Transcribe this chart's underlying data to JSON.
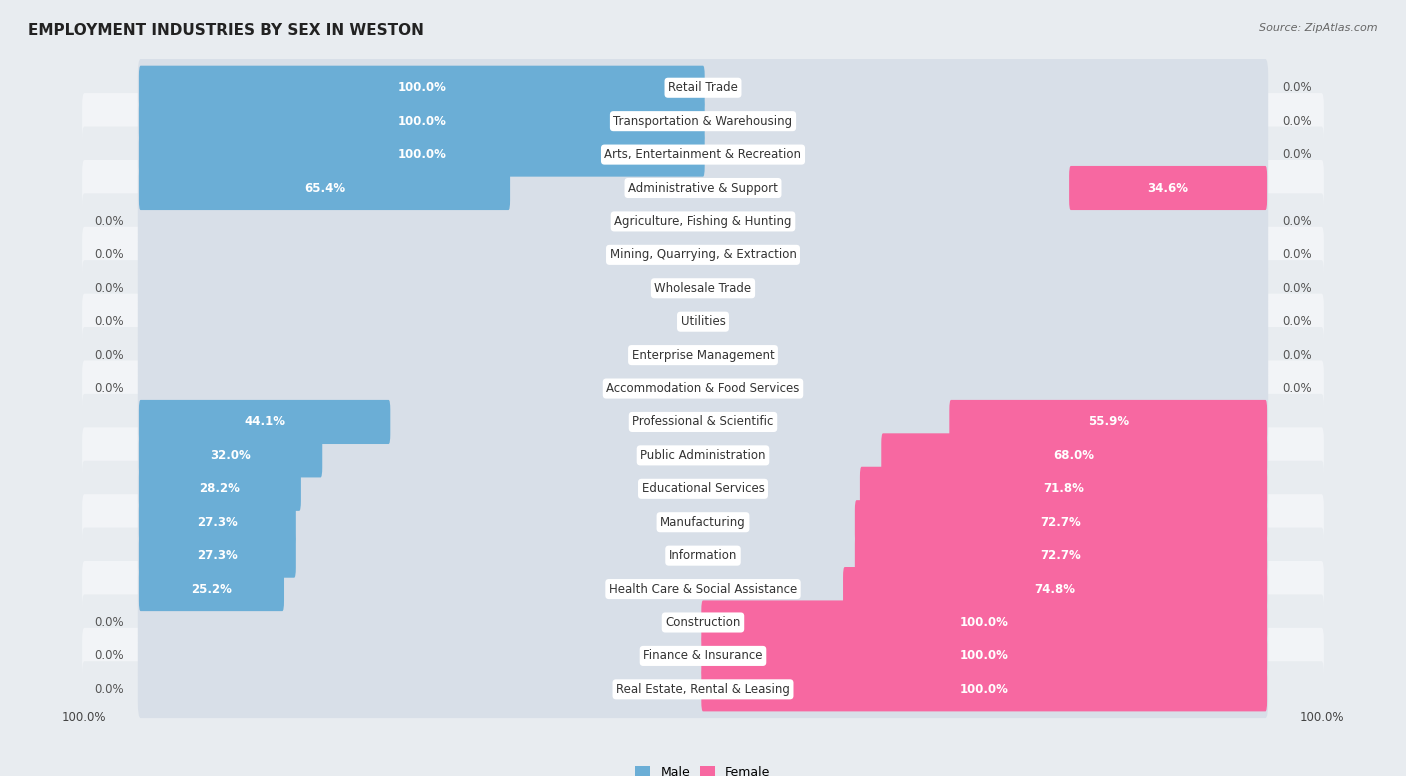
{
  "title": "EMPLOYMENT INDUSTRIES BY SEX IN WESTON",
  "source": "Source: ZipAtlas.com",
  "male_color": "#6baed6",
  "female_color": "#f768a1",
  "male_color_light": "#c6dbef",
  "female_color_light": "#fcc5d8",
  "row_bg_odd": "#e8ecf0",
  "row_bg_even": "#f2f4f7",
  "bar_bg_color": "#dde3ea",
  "background_color": "#e8ecf0",
  "industries": [
    {
      "name": "Retail Trade",
      "male": 100.0,
      "female": 0.0
    },
    {
      "name": "Transportation & Warehousing",
      "male": 100.0,
      "female": 0.0
    },
    {
      "name": "Arts, Entertainment & Recreation",
      "male": 100.0,
      "female": 0.0
    },
    {
      "name": "Administrative & Support",
      "male": 65.4,
      "female": 34.6
    },
    {
      "name": "Agriculture, Fishing & Hunting",
      "male": 0.0,
      "female": 0.0
    },
    {
      "name": "Mining, Quarrying, & Extraction",
      "male": 0.0,
      "female": 0.0
    },
    {
      "name": "Wholesale Trade",
      "male": 0.0,
      "female": 0.0
    },
    {
      "name": "Utilities",
      "male": 0.0,
      "female": 0.0
    },
    {
      "name": "Enterprise Management",
      "male": 0.0,
      "female": 0.0
    },
    {
      "name": "Accommodation & Food Services",
      "male": 0.0,
      "female": 0.0
    },
    {
      "name": "Professional & Scientific",
      "male": 44.1,
      "female": 55.9
    },
    {
      "name": "Public Administration",
      "male": 32.0,
      "female": 68.0
    },
    {
      "name": "Educational Services",
      "male": 28.2,
      "female": 71.8
    },
    {
      "name": "Manufacturing",
      "male": 27.3,
      "female": 72.7
    },
    {
      "name": "Information",
      "male": 27.3,
      "female": 72.7
    },
    {
      "name": "Health Care & Social Assistance",
      "male": 25.2,
      "female": 74.8
    },
    {
      "name": "Construction",
      "male": 0.0,
      "female": 100.0
    },
    {
      "name": "Finance & Insurance",
      "male": 0.0,
      "female": 100.0
    },
    {
      "name": "Real Estate, Rental & Leasing",
      "male": 0.0,
      "female": 100.0
    }
  ],
  "legend_male": "Male",
  "legend_female": "Female",
  "title_fontsize": 11,
  "bar_label_fontsize": 8.5,
  "industry_fontsize": 8.5,
  "source_fontsize": 8.0
}
